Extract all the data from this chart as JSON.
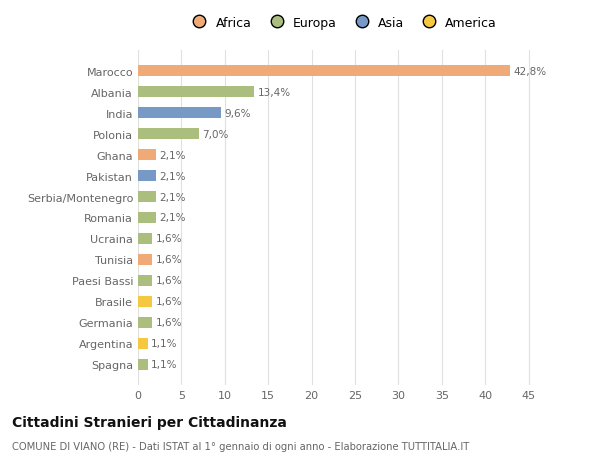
{
  "categories": [
    "Marocco",
    "Albania",
    "India",
    "Polonia",
    "Ghana",
    "Pakistan",
    "Serbia/Montenegro",
    "Romania",
    "Ucraina",
    "Tunisia",
    "Paesi Bassi",
    "Brasile",
    "Germania",
    "Argentina",
    "Spagna"
  ],
  "values": [
    42.8,
    13.4,
    9.6,
    7.0,
    2.1,
    2.1,
    2.1,
    2.1,
    1.6,
    1.6,
    1.6,
    1.6,
    1.6,
    1.1,
    1.1
  ],
  "labels": [
    "42,8%",
    "13,4%",
    "9,6%",
    "7,0%",
    "2,1%",
    "2,1%",
    "2,1%",
    "2,1%",
    "1,6%",
    "1,6%",
    "1,6%",
    "1,6%",
    "1,6%",
    "1,1%",
    "1,1%"
  ],
  "continents": [
    "Africa",
    "Europa",
    "Asia",
    "Europa",
    "Africa",
    "Asia",
    "Europa",
    "Europa",
    "Europa",
    "Africa",
    "Europa",
    "America",
    "Europa",
    "America",
    "Europa"
  ],
  "colors": {
    "Africa": "#F0AA78",
    "Europa": "#ABBE7E",
    "Asia": "#7799C5",
    "America": "#F5C842"
  },
  "title": "Cittadini Stranieri per Cittadinanza",
  "subtitle": "COMUNE DI VIANO (RE) - Dati ISTAT al 1° gennaio di ogni anno - Elaborazione TUTTITALIA.IT",
  "xlim": [
    0,
    47
  ],
  "xticks": [
    0,
    5,
    10,
    15,
    20,
    25,
    30,
    35,
    40,
    45
  ],
  "background_color": "#ffffff",
  "grid_color": "#e0e0e0",
  "bar_height": 0.55,
  "text_color": "#666666",
  "title_color": "#111111",
  "subtitle_color": "#666666",
  "legend_order": [
    "Africa",
    "Europa",
    "Asia",
    "America"
  ]
}
